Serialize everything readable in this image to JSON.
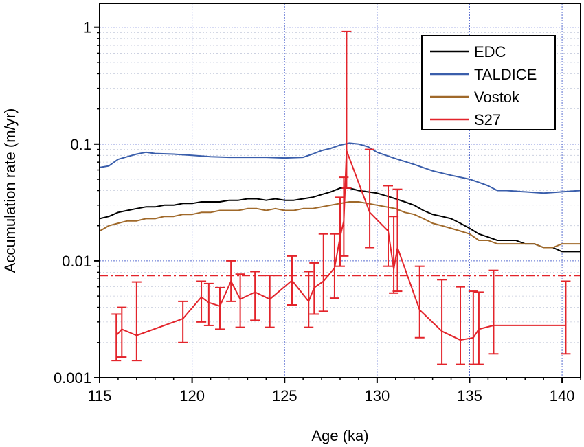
{
  "chart_data": {
    "type": "line",
    "xlabel": "Age (ka)",
    "ylabel": "Accumulation rate (m/yr)",
    "xlim": [
      115,
      141
    ],
    "ylim": [
      0.001,
      1.6
    ],
    "yscale": "log",
    "x_ticks": [
      115,
      120,
      125,
      130,
      135,
      140
    ],
    "x_tick_labels": [
      "115",
      "120",
      "125",
      "130",
      "135",
      "140"
    ],
    "y_ticks": [
      0.001,
      0.01,
      0.1,
      1
    ],
    "y_tick_labels": [
      "0.001",
      "0.01",
      "0.1",
      "1"
    ],
    "grid": true,
    "legend_position": "top-right",
    "series": [
      {
        "name": "EDC",
        "color": "#000000",
        "x": [
          115.0,
          115.5,
          116.0,
          116.5,
          117.0,
          117.5,
          118.0,
          118.5,
          119.0,
          119.5,
          120.0,
          120.5,
          121.0,
          121.5,
          122.0,
          122.5,
          123.0,
          123.5,
          124.0,
          124.5,
          125.0,
          125.5,
          126.0,
          126.5,
          127.0,
          127.5,
          128.0,
          128.5,
          129.0,
          129.5,
          130.0,
          130.5,
          131.0,
          131.5,
          132.0,
          132.5,
          133.0,
          133.5,
          134.0,
          134.5,
          135.0,
          135.5,
          136.0,
          136.5,
          137.0,
          137.5,
          138.0,
          138.5,
          139.0,
          139.5,
          140.0,
          140.5,
          141.0
        ],
        "y": [
          0.023,
          0.024,
          0.026,
          0.027,
          0.028,
          0.029,
          0.029,
          0.03,
          0.03,
          0.031,
          0.031,
          0.032,
          0.032,
          0.032,
          0.033,
          0.033,
          0.034,
          0.034,
          0.033,
          0.034,
          0.033,
          0.033,
          0.034,
          0.035,
          0.037,
          0.039,
          0.042,
          0.042,
          0.04,
          0.039,
          0.038,
          0.036,
          0.034,
          0.032,
          0.03,
          0.027,
          0.025,
          0.024,
          0.023,
          0.021,
          0.019,
          0.017,
          0.016,
          0.015,
          0.015,
          0.015,
          0.014,
          0.014,
          0.013,
          0.013,
          0.012,
          0.012,
          0.012
        ]
      },
      {
        "name": "TALDICE",
        "color": "#3a5eab",
        "x": [
          115.0,
          115.5,
          116.0,
          116.5,
          117.0,
          117.5,
          118.0,
          119.0,
          120.0,
          121.0,
          122.0,
          123.0,
          124.0,
          125.0,
          126.0,
          126.5,
          127.0,
          127.5,
          128.0,
          128.5,
          129.0,
          129.5,
          130.0,
          131.0,
          132.0,
          133.0,
          134.0,
          135.0,
          135.5,
          136.0,
          136.5,
          137.0,
          138.0,
          139.0,
          140.0,
          141.0
        ],
        "y": [
          0.063,
          0.065,
          0.074,
          0.078,
          0.082,
          0.085,
          0.083,
          0.082,
          0.08,
          0.078,
          0.077,
          0.077,
          0.077,
          0.076,
          0.077,
          0.082,
          0.088,
          0.092,
          0.098,
          0.102,
          0.1,
          0.095,
          0.085,
          0.075,
          0.067,
          0.059,
          0.054,
          0.05,
          0.047,
          0.044,
          0.04,
          0.04,
          0.039,
          0.038,
          0.039,
          0.04
        ]
      },
      {
        "name": "Vostok",
        "color": "#a0692a",
        "x": [
          115.0,
          115.5,
          116.0,
          116.5,
          117.0,
          117.5,
          118.0,
          118.5,
          119.0,
          119.5,
          120.0,
          120.5,
          121.0,
          121.5,
          122.0,
          122.5,
          123.0,
          123.5,
          124.0,
          124.5,
          125.0,
          125.5,
          126.0,
          126.5,
          127.0,
          127.5,
          128.0,
          128.5,
          129.0,
          129.5,
          130.0,
          130.5,
          131.0,
          131.5,
          132.0,
          132.5,
          133.0,
          133.5,
          134.0,
          134.5,
          135.0,
          135.5,
          136.0,
          136.5,
          137.0,
          137.5,
          138.0,
          138.5,
          139.0,
          139.5,
          140.0,
          140.5,
          141.0
        ],
        "y": [
          0.018,
          0.02,
          0.021,
          0.022,
          0.022,
          0.023,
          0.023,
          0.024,
          0.024,
          0.025,
          0.025,
          0.026,
          0.026,
          0.027,
          0.027,
          0.027,
          0.028,
          0.028,
          0.027,
          0.028,
          0.027,
          0.027,
          0.028,
          0.028,
          0.029,
          0.03,
          0.031,
          0.032,
          0.032,
          0.031,
          0.03,
          0.029,
          0.028,
          0.026,
          0.025,
          0.023,
          0.021,
          0.02,
          0.019,
          0.018,
          0.017,
          0.015,
          0.015,
          0.014,
          0.014,
          0.014,
          0.014,
          0.014,
          0.013,
          0.013,
          0.014,
          0.014,
          0.014
        ]
      },
      {
        "name": "S27",
        "color": "#e3242b",
        "x": [
          115.9,
          116.2,
          117.0,
          119.5,
          120.5,
          120.9,
          121.5,
          122.1,
          122.6,
          123.4,
          124.2,
          125.4,
          126.3,
          126.6,
          127.1,
          127.7,
          128.0,
          128.2,
          128.35,
          129.6,
          130.6,
          130.9,
          131.1,
          132.3,
          133.5,
          134.5,
          135.2,
          135.5,
          136.3,
          140.2
        ],
        "y": [
          0.0023,
          0.0026,
          0.0023,
          0.0032,
          0.0049,
          0.0044,
          0.0041,
          0.0067,
          0.0047,
          0.0054,
          0.0047,
          0.0068,
          0.0045,
          0.0059,
          0.0067,
          0.0087,
          0.016,
          0.022,
          0.088,
          0.026,
          0.018,
          0.0085,
          0.013,
          0.0038,
          0.0025,
          0.0021,
          0.0022,
          0.0026,
          0.0028,
          0.0028
        ],
        "y_low": [
          0.0014,
          0.0015,
          0.0014,
          0.002,
          0.003,
          0.0028,
          0.0026,
          0.0045,
          0.0027,
          0.0031,
          0.0027,
          0.0042,
          0.0027,
          0.0035,
          0.0037,
          0.0048,
          0.009,
          0.011,
          0.042,
          0.013,
          0.009,
          0.0053,
          0.0055,
          0.0022,
          0.0013,
          0.0013,
          0.0013,
          0.0013,
          0.0016,
          0.0016
        ],
        "y_high": [
          0.0035,
          0.004,
          0.0066,
          0.0045,
          0.0067,
          0.0064,
          0.0059,
          0.01,
          0.0077,
          0.0081,
          0.0075,
          0.011,
          0.0081,
          0.0096,
          0.017,
          0.017,
          0.035,
          0.052,
          0.92,
          0.09,
          0.044,
          0.024,
          0.041,
          0.009,
          0.0069,
          0.006,
          0.0055,
          0.0054,
          0.0083,
          0.0067
        ]
      }
    ],
    "reference_line": {
      "y": 0.0075,
      "style": "dash-dot",
      "color": "#e3242b"
    }
  }
}
